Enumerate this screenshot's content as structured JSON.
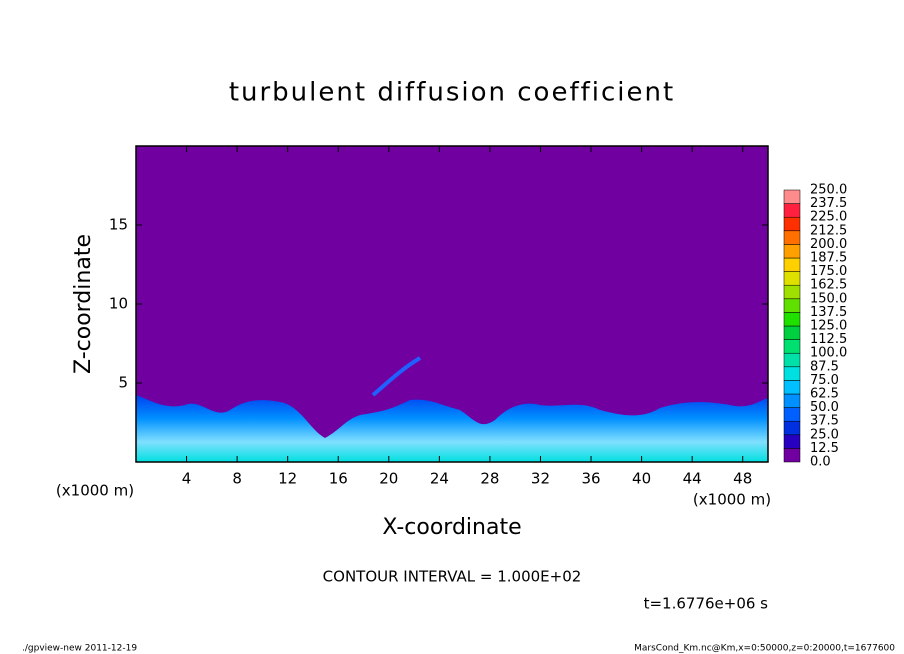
{
  "chart_data": {
    "type": "contour",
    "title": "turbulent diffusion coefficient",
    "x_label": "X-coordinate",
    "y_label": "Z-coordinate",
    "x_unit": "(x1000 m)",
    "y_unit": "(x1000 m)",
    "xlim": [
      0,
      50
    ],
    "xticks": [
      4,
      8,
      12,
      16,
      20,
      24,
      28,
      32,
      36,
      40,
      44,
      48
    ],
    "ylim": [
      0,
      20
    ],
    "yticks": [
      5,
      10,
      15
    ],
    "colorbar": {
      "levels": [
        {
          "value": 0,
          "label": "0.0"
        },
        {
          "value": 12.5,
          "label": "12.5"
        },
        {
          "value": 25,
          "label": "25.0"
        },
        {
          "value": 37.5,
          "label": "37.5"
        },
        {
          "value": 50,
          "label": "50.0"
        },
        {
          "value": 62.5,
          "label": "62.5"
        },
        {
          "value": 75,
          "label": "75.0"
        },
        {
          "value": 87.5,
          "label": "87.5"
        },
        {
          "value": 100,
          "label": "100.0"
        },
        {
          "value": 112.5,
          "label": "112.5"
        },
        {
          "value": 125,
          "label": "125.0"
        },
        {
          "value": 137.5,
          "label": "137.5"
        },
        {
          "value": 150,
          "label": "150.0"
        },
        {
          "value": 162.5,
          "label": "162.5"
        },
        {
          "value": 175,
          "label": "175.0"
        },
        {
          "value": 187.5,
          "label": "187.5"
        },
        {
          "value": 200,
          "label": "200.0"
        },
        {
          "value": 212.5,
          "label": "212.5"
        },
        {
          "value": 225,
          "label": "225.0"
        },
        {
          "value": 237.5,
          "label": "237.5"
        },
        {
          "value": 250,
          "label": "250.0"
        }
      ],
      "colors": [
        "#7000a0",
        "#2800c0",
        "#0030e0",
        "#0060ff",
        "#0090ff",
        "#00c0ff",
        "#00e0e0",
        "#00e0a8",
        "#00e070",
        "#00d040",
        "#20e000",
        "#60e000",
        "#a0e000",
        "#e0e000",
        "#ffd000",
        "#ffa000",
        "#ff7000",
        "#ff3000",
        "#ff2040",
        "#ff8c8c"
      ]
    },
    "annotations": {
      "contour_interval": "CONTOUR INTERVAL = 1.000E+02",
      "time": "t=1.6776e+06 s",
      "footer_left": "./gpview-new  2011-12-19",
      "footer_right": "MarsCond_Km.nc@Km,x=0:50000,z=0:20000,t=1677600"
    }
  }
}
